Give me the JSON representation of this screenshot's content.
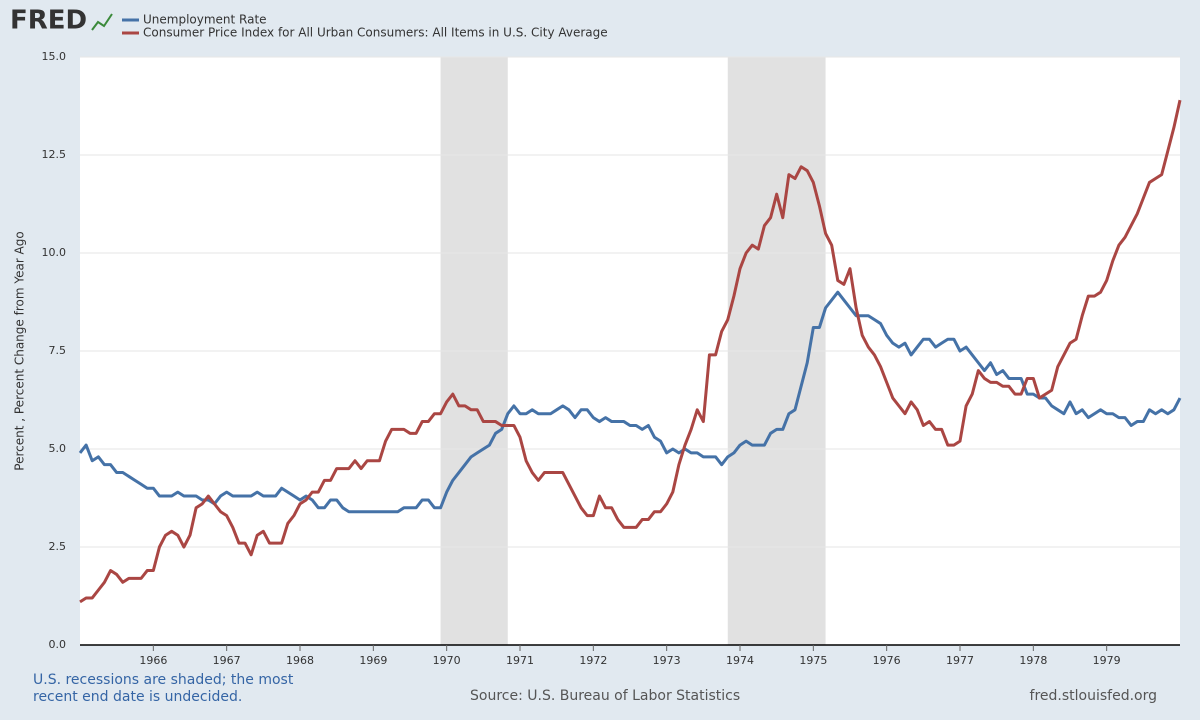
{
  "chart_data": {
    "type": "line",
    "logo": "FRED",
    "y_label": "Percent , Percent Change from Year Ago",
    "note": "U.S. recessions are shaded; the most recent end date is undecided.",
    "source": "Source: U.S. Bureau of Labor Statistics",
    "site": "fred.stlouisfed.org",
    "grid": true,
    "xlim": [
      "1965-01",
      "1980-01"
    ],
    "ylim": [
      0,
      15
    ],
    "yticks": [
      {
        "value": 0,
        "label": "0.0"
      },
      2.5,
      {
        "value": 5,
        "label": "5.0"
      },
      7.5,
      {
        "value": 10,
        "label": "10.0"
      },
      12.5,
      {
        "value": 15,
        "label": "15.0"
      }
    ],
    "xticks": [
      {
        "value": "1966-01",
        "label": "1966"
      },
      {
        "value": "1967-01",
        "label": "1967"
      },
      {
        "value": "1968-01",
        "label": "1968"
      },
      {
        "value": "1969-01",
        "label": "1969"
      },
      {
        "value": "1970-01",
        "label": "1970"
      },
      {
        "value": "1971-01",
        "label": "1971"
      },
      {
        "value": "1972-01",
        "label": "1972"
      },
      {
        "value": "1973-01",
        "label": "1973"
      },
      {
        "value": "1974-01",
        "label": "1974"
      },
      {
        "value": "1975-01",
        "label": "1975"
      },
      {
        "value": "1976-01",
        "label": "1976"
      },
      {
        "value": "1977-01",
        "label": "1977"
      },
      {
        "value": "1978-01",
        "label": "1978"
      },
      {
        "value": "1979-01",
        "label": "1979"
      }
    ],
    "recessions": [
      [
        "1969-12",
        "1970-11"
      ],
      [
        "1973-11",
        "1975-03"
      ]
    ],
    "x": [
      "1965-01",
      "1965-02",
      "1965-03",
      "1965-04",
      "1965-05",
      "1965-06",
      "1965-07",
      "1965-08",
      "1965-09",
      "1965-10",
      "1965-11",
      "1965-12",
      "1966-01",
      "1966-02",
      "1966-03",
      "1966-04",
      "1966-05",
      "1966-06",
      "1966-07",
      "1966-08",
      "1966-09",
      "1966-10",
      "1966-11",
      "1966-12",
      "1967-01",
      "1967-02",
      "1967-03",
      "1967-04",
      "1967-05",
      "1967-06",
      "1967-07",
      "1967-08",
      "1967-09",
      "1967-10",
      "1967-11",
      "1967-12",
      "1968-01",
      "1968-02",
      "1968-03",
      "1968-04",
      "1968-05",
      "1968-06",
      "1968-07",
      "1968-08",
      "1968-09",
      "1968-10",
      "1968-11",
      "1968-12",
      "1969-01",
      "1969-02",
      "1969-03",
      "1969-04",
      "1969-05",
      "1969-06",
      "1969-07",
      "1969-08",
      "1969-09",
      "1969-10",
      "1969-11",
      "1969-12",
      "1970-01",
      "1970-02",
      "1970-03",
      "1970-04",
      "1970-05",
      "1970-06",
      "1970-07",
      "1970-08",
      "1970-09",
      "1970-10",
      "1970-11",
      "1970-12",
      "1971-01",
      "1971-02",
      "1971-03",
      "1971-04",
      "1971-05",
      "1971-06",
      "1971-07",
      "1971-08",
      "1971-09",
      "1971-10",
      "1971-11",
      "1971-12",
      "1972-01",
      "1972-02",
      "1972-03",
      "1972-04",
      "1972-05",
      "1972-06",
      "1972-07",
      "1972-08",
      "1972-09",
      "1972-10",
      "1972-11",
      "1972-12",
      "1973-01",
      "1973-02",
      "1973-03",
      "1973-04",
      "1973-05",
      "1973-06",
      "1973-07",
      "1973-08",
      "1973-09",
      "1973-10",
      "1973-11",
      "1973-12",
      "1974-01",
      "1974-02",
      "1974-03",
      "1974-04",
      "1974-05",
      "1974-06",
      "1974-07",
      "1974-08",
      "1974-09",
      "1974-10",
      "1974-11",
      "1974-12",
      "1975-01",
      "1975-02",
      "1975-03",
      "1975-04",
      "1975-05",
      "1975-06",
      "1975-07",
      "1975-08",
      "1975-09",
      "1975-10",
      "1975-11",
      "1975-12",
      "1976-01",
      "1976-02",
      "1976-03",
      "1976-04",
      "1976-05",
      "1976-06",
      "1976-07",
      "1976-08",
      "1976-09",
      "1976-10",
      "1976-11",
      "1976-12",
      "1977-01",
      "1977-02",
      "1977-03",
      "1977-04",
      "1977-05",
      "1977-06",
      "1977-07",
      "1977-08",
      "1977-09",
      "1977-10",
      "1977-11",
      "1977-12",
      "1978-01",
      "1978-02",
      "1978-03",
      "1978-04",
      "1978-05",
      "1978-06",
      "1978-07",
      "1978-08",
      "1978-09",
      "1978-10",
      "1978-11",
      "1978-12",
      "1979-01",
      "1979-02",
      "1979-03",
      "1979-04",
      "1979-05",
      "1979-06",
      "1979-07",
      "1979-08",
      "1979-09",
      "1979-10",
      "1979-11",
      "1979-12",
      "1980-01"
    ],
    "series": [
      {
        "name": "Unemployment Rate",
        "color": "#4572a7",
        "values": [
          4.9,
          5.1,
          4.7,
          4.8,
          4.6,
          4.6,
          4.4,
          4.4,
          4.3,
          4.2,
          4.1,
          4.0,
          4.0,
          3.8,
          3.8,
          3.8,
          3.9,
          3.8,
          3.8,
          3.8,
          3.7,
          3.7,
          3.6,
          3.8,
          3.9,
          3.8,
          3.8,
          3.8,
          3.8,
          3.9,
          3.8,
          3.8,
          3.8,
          4.0,
          3.9,
          3.8,
          3.7,
          3.8,
          3.7,
          3.5,
          3.5,
          3.7,
          3.7,
          3.5,
          3.4,
          3.4,
          3.4,
          3.4,
          3.4,
          3.4,
          3.4,
          3.4,
          3.4,
          3.5,
          3.5,
          3.5,
          3.7,
          3.7,
          3.5,
          3.5,
          3.9,
          4.2,
          4.4,
          4.6,
          4.8,
          4.9,
          5.0,
          5.1,
          5.4,
          5.5,
          5.9,
          6.1,
          5.9,
          5.9,
          6.0,
          5.9,
          5.9,
          5.9,
          6.0,
          6.1,
          6.0,
          5.8,
          6.0,
          6.0,
          5.8,
          5.7,
          5.8,
          5.7,
          5.7,
          5.7,
          5.6,
          5.6,
          5.5,
          5.6,
          5.3,
          5.2,
          4.9,
          5.0,
          4.9,
          5.0,
          4.9,
          4.9,
          4.8,
          4.8,
          4.8,
          4.6,
          4.8,
          4.9,
          5.1,
          5.2,
          5.1,
          5.1,
          5.1,
          5.4,
          5.5,
          5.5,
          5.9,
          6.0,
          6.6,
          7.2,
          8.1,
          8.1,
          8.6,
          8.8,
          9.0,
          8.8,
          8.6,
          8.4,
          8.4,
          8.4,
          8.3,
          8.2,
          7.9,
          7.7,
          7.6,
          7.7,
          7.4,
          7.6,
          7.8,
          7.8,
          7.6,
          7.7,
          7.8,
          7.8,
          7.5,
          7.6,
          7.4,
          7.2,
          7.0,
          7.2,
          6.9,
          7.0,
          6.8,
          6.8,
          6.8,
          6.4,
          6.4,
          6.3,
          6.3,
          6.1,
          6.0,
          5.9,
          6.2,
          5.9,
          6.0,
          5.8,
          5.9,
          6.0,
          5.9,
          5.9,
          5.8,
          5.8,
          5.6,
          5.7,
          5.7,
          6.0,
          5.9,
          6.0,
          5.9,
          6.0,
          6.3
        ]
      },
      {
        "name": "Consumer Price Index for All Urban Consumers: All Items in U.S. City Average",
        "color": "#aa4643",
        "values": [
          1.1,
          1.2,
          1.2,
          1.4,
          1.6,
          1.9,
          1.8,
          1.6,
          1.7,
          1.7,
          1.7,
          1.9,
          1.9,
          2.5,
          2.8,
          2.9,
          2.8,
          2.5,
          2.8,
          3.5,
          3.6,
          3.8,
          3.6,
          3.4,
          3.3,
          3.0,
          2.6,
          2.6,
          2.3,
          2.8,
          2.9,
          2.6,
          2.6,
          2.6,
          3.1,
          3.3,
          3.6,
          3.7,
          3.9,
          3.9,
          4.2,
          4.2,
          4.5,
          4.5,
          4.5,
          4.7,
          4.5,
          4.7,
          4.7,
          4.7,
          5.2,
          5.5,
          5.5,
          5.5,
          5.4,
          5.4,
          5.7,
          5.7,
          5.9,
          5.9,
          6.2,
          6.4,
          6.1,
          6.1,
          6.0,
          6.0,
          5.7,
          5.7,
          5.7,
          5.6,
          5.6,
          5.6,
          5.3,
          4.7,
          4.4,
          4.2,
          4.4,
          4.4,
          4.4,
          4.4,
          4.1,
          3.8,
          3.5,
          3.3,
          3.3,
          3.8,
          3.5,
          3.5,
          3.2,
          3.0,
          3.0,
          3.0,
          3.2,
          3.2,
          3.4,
          3.4,
          3.6,
          3.9,
          4.6,
          5.1,
          5.5,
          6.0,
          5.7,
          7.4,
          7.4,
          8.0,
          8.3,
          8.9,
          9.6,
          10.0,
          10.2,
          10.1,
          10.7,
          10.9,
          11.5,
          10.9,
          12.0,
          11.9,
          12.2,
          12.1,
          11.8,
          11.2,
          10.5,
          10.2,
          9.3,
          9.2,
          9.6,
          8.6,
          7.9,
          7.6,
          7.4,
          7.1,
          6.7,
          6.3,
          6.1,
          5.9,
          6.2,
          6.0,
          5.6,
          5.7,
          5.5,
          5.5,
          5.1,
          5.1,
          5.2,
          6.1,
          6.4,
          7.0,
          6.8,
          6.7,
          6.7,
          6.6,
          6.6,
          6.4,
          6.4,
          6.8,
          6.8,
          6.3,
          6.4,
          6.5,
          7.1,
          7.4,
          7.7,
          7.8,
          8.4,
          8.9,
          8.9,
          9.0,
          9.3,
          9.8,
          10.2,
          10.4,
          10.7,
          11.0,
          11.4,
          11.8,
          11.9,
          12.0,
          12.6,
          13.2,
          13.9
        ]
      }
    ]
  }
}
